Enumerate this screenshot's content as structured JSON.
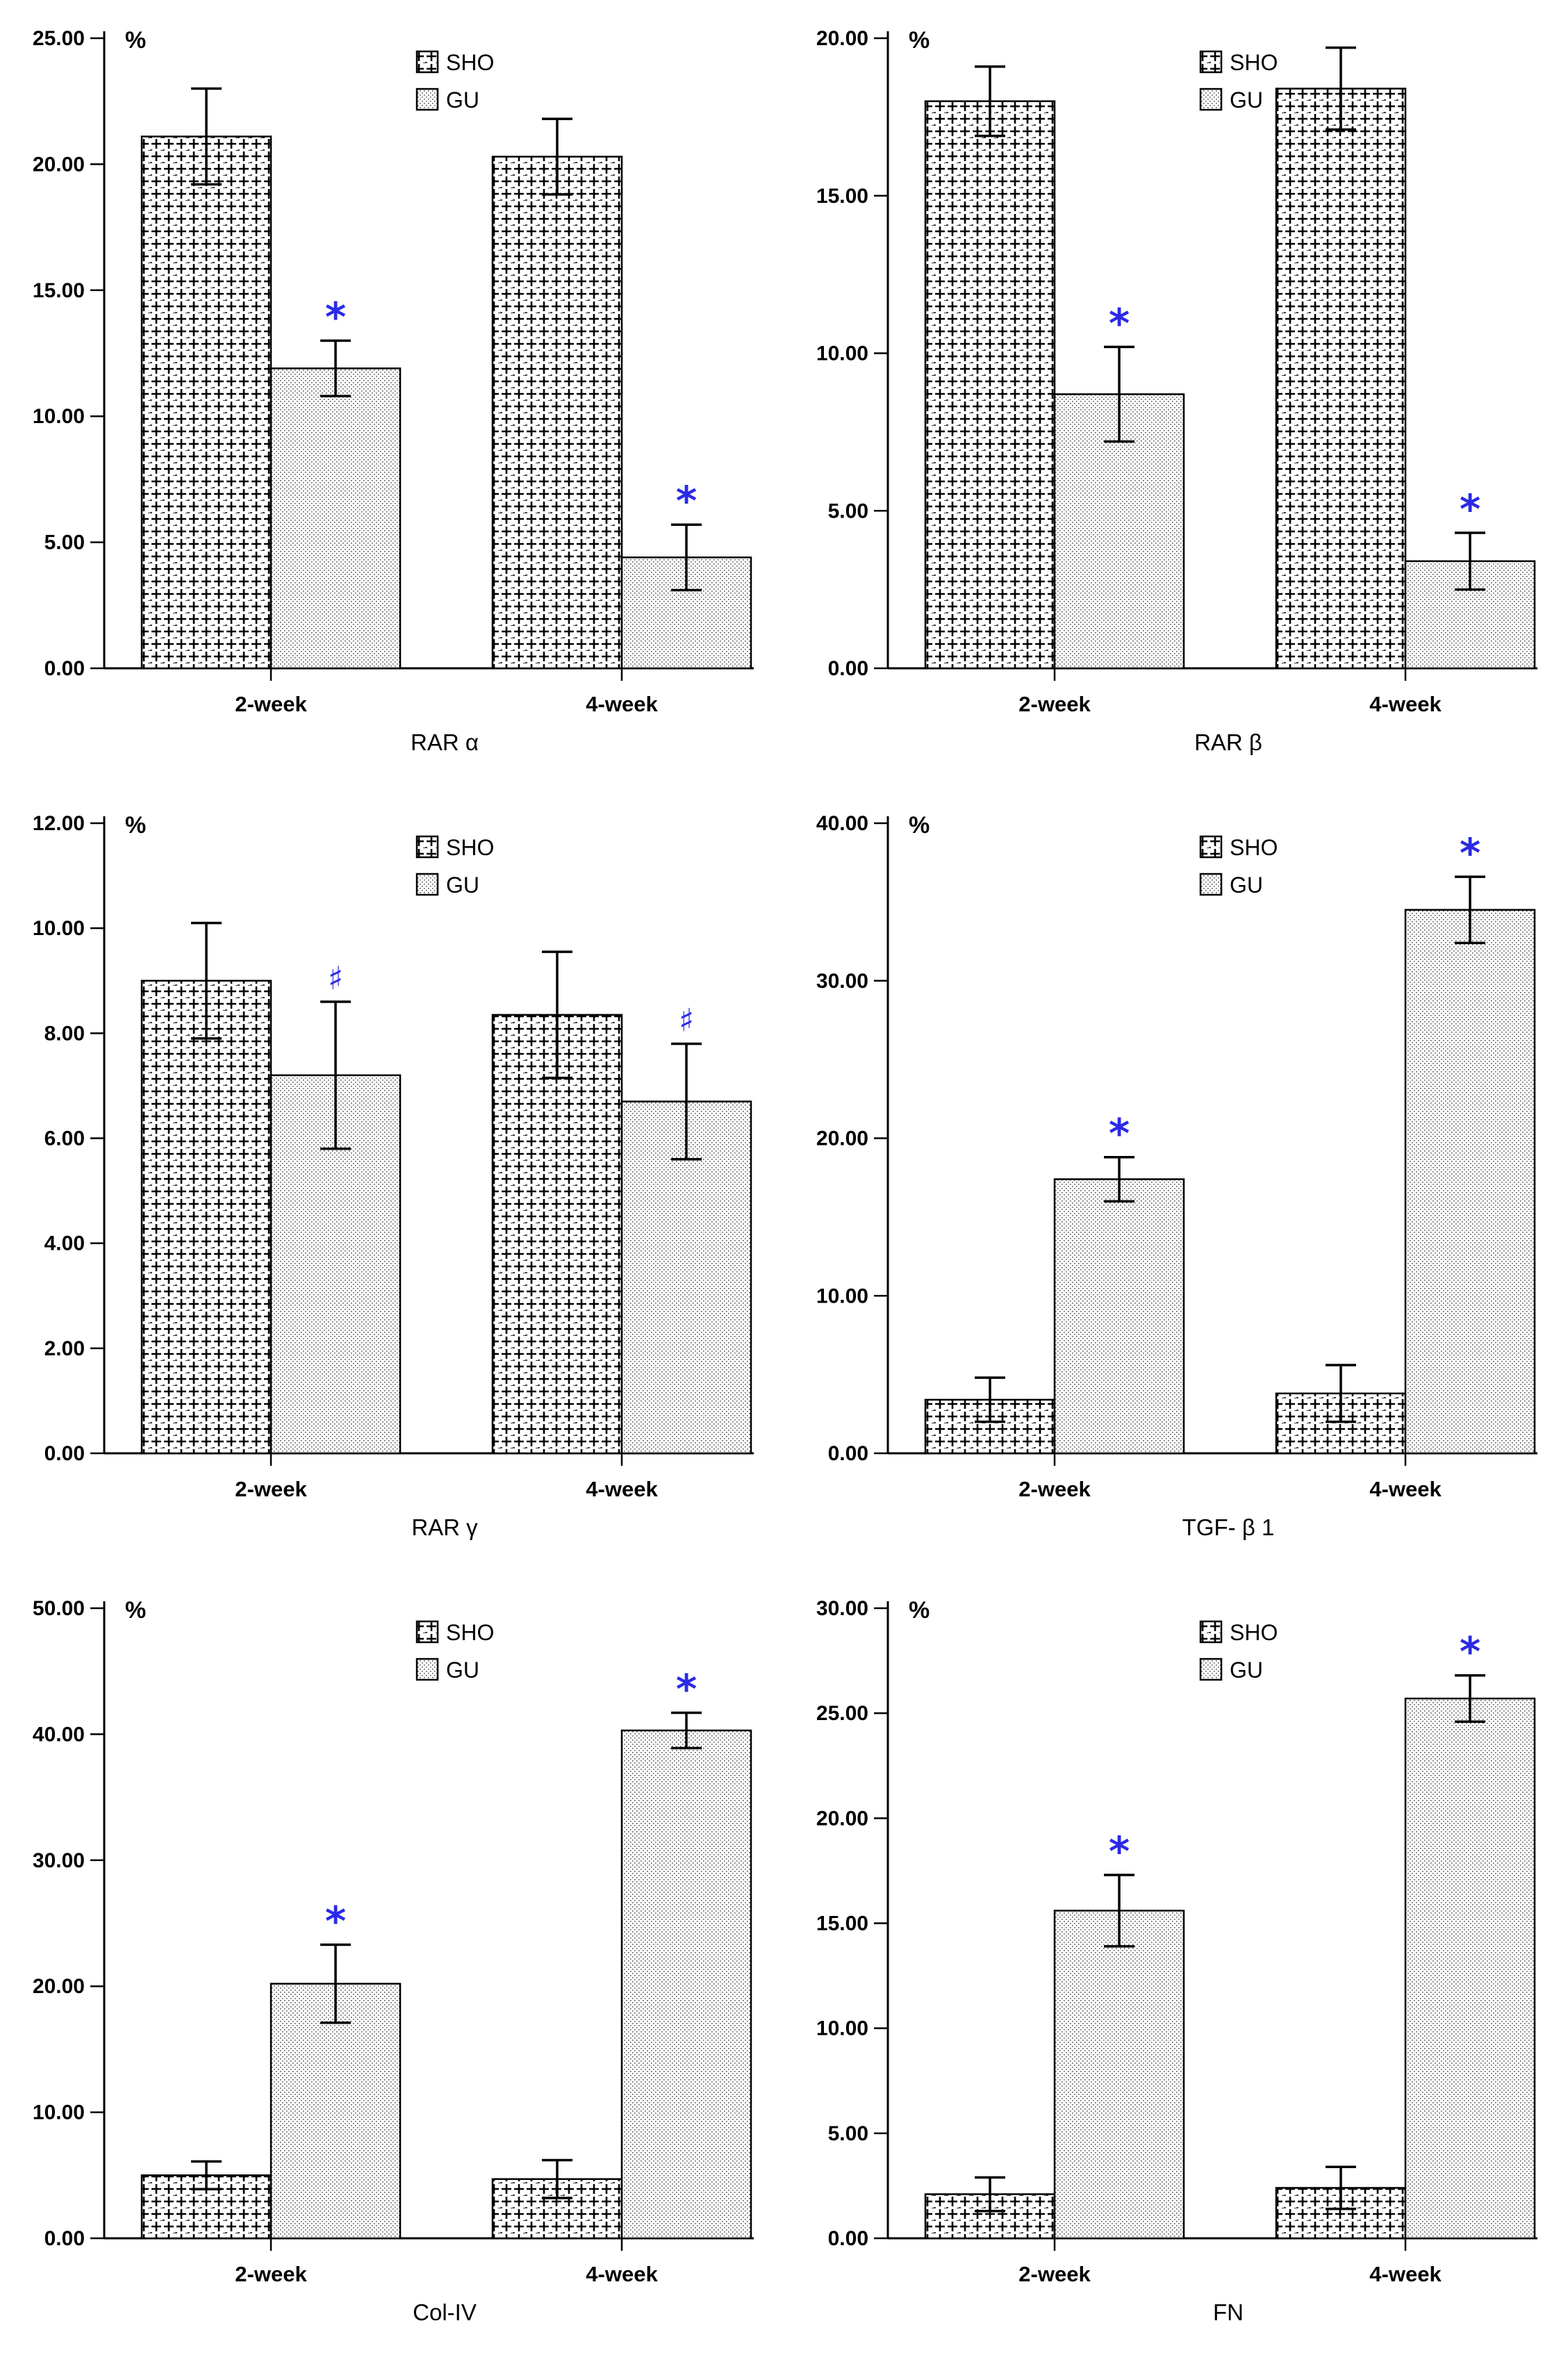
{
  "figure": {
    "colors": {
      "axis": "#000000",
      "bar_edge": "#000000",
      "significance": "#2a2ae6",
      "sho_fill": "#ffffff",
      "gu_fill": "#ffffff"
    }
  },
  "chart_data": [
    {
      "type": "bar",
      "title": "RAR α",
      "ylabel": "%",
      "categories": [
        "2-week",
        "4-week"
      ],
      "ylim": [
        0,
        25
      ],
      "yticks": [
        "0.00",
        "5.00",
        "10.00",
        "15.00",
        "20.00",
        "25.00"
      ],
      "legend": [
        "SHO",
        "GU"
      ],
      "legend_position": "top-center",
      "series": [
        {
          "name": "SHO",
          "values": [
            21.1,
            20.3
          ],
          "errors": [
            1.9,
            1.5
          ],
          "marks": [
            "",
            ""
          ]
        },
        {
          "name": "GU",
          "values": [
            11.9,
            4.4
          ],
          "errors": [
            1.1,
            1.3
          ],
          "marks": [
            "*",
            "*"
          ]
        }
      ]
    },
    {
      "type": "bar",
      "title": "RAR β",
      "ylabel": "%",
      "categories": [
        "2-week",
        "4-week"
      ],
      "ylim": [
        0,
        20
      ],
      "yticks": [
        "0.00",
        "5.00",
        "10.00",
        "15.00",
        "20.00"
      ],
      "legend": [
        "SHO",
        "GU"
      ],
      "legend_position": "top-center",
      "series": [
        {
          "name": "SHO",
          "values": [
            18.0,
            18.4
          ],
          "errors": [
            1.1,
            1.3
          ],
          "marks": [
            "",
            ""
          ]
        },
        {
          "name": "GU",
          "values": [
            8.7,
            3.4
          ],
          "errors": [
            1.5,
            0.9
          ],
          "marks": [
            "*",
            "*"
          ]
        }
      ]
    },
    {
      "type": "bar",
      "title": "RAR γ",
      "ylabel": "%",
      "categories": [
        "2-week",
        "4-week"
      ],
      "ylim": [
        0,
        12
      ],
      "yticks": [
        "0.00",
        "2.00",
        "4.00",
        "6.00",
        "8.00",
        "10.00",
        "12.00"
      ],
      "legend": [
        "SHO",
        "GU"
      ],
      "legend_position": "top-center",
      "series": [
        {
          "name": "SHO",
          "values": [
            9.0,
            8.35
          ],
          "errors": [
            1.1,
            1.2
          ],
          "marks": [
            "",
            ""
          ]
        },
        {
          "name": "GU",
          "values": [
            7.2,
            6.7
          ],
          "errors": [
            1.4,
            1.1
          ],
          "marks": [
            "♯",
            "♯"
          ]
        }
      ]
    },
    {
      "type": "bar",
      "title": "TGF- β 1",
      "ylabel": "%",
      "categories": [
        "2-week",
        "4-week"
      ],
      "ylim": [
        0,
        40
      ],
      "yticks": [
        "0.00",
        "10.00",
        "20.00",
        "30.00",
        "40.00"
      ],
      "legend": [
        "SHO",
        "GU"
      ],
      "legend_position": "top-center",
      "series": [
        {
          "name": "SHO",
          "values": [
            3.4,
            3.8
          ],
          "errors": [
            1.4,
            1.8
          ],
          "marks": [
            "",
            ""
          ]
        },
        {
          "name": "GU",
          "values": [
            17.4,
            34.5
          ],
          "errors": [
            1.4,
            2.1
          ],
          "marks": [
            "*",
            "*"
          ]
        }
      ]
    },
    {
      "type": "bar",
      "title": "Col-IV",
      "ylabel": "%",
      "categories": [
        "2-week",
        "4-week"
      ],
      "ylim": [
        0,
        50
      ],
      "yticks": [
        "0.00",
        "10.00",
        "20.00",
        "30.00",
        "40.00",
        "50.00"
      ],
      "legend": [
        "SHO",
        "GU"
      ],
      "legend_position": "top-center",
      "series": [
        {
          "name": "SHO",
          "values": [
            5.0,
            4.7
          ],
          "errors": [
            1.1,
            1.5
          ],
          "marks": [
            "",
            ""
          ]
        },
        {
          "name": "GU",
          "values": [
            20.2,
            40.3
          ],
          "errors": [
            3.1,
            1.4
          ],
          "marks": [
            "*",
            "*"
          ]
        }
      ]
    },
    {
      "type": "bar",
      "title": "FN",
      "ylabel": "%",
      "categories": [
        "2-week",
        "4-week"
      ],
      "ylim": [
        0,
        30
      ],
      "yticks": [
        "0.00",
        "5.00",
        "10.00",
        "15.00",
        "20.00",
        "25.00",
        "30.00"
      ],
      "legend": [
        "SHO",
        "GU"
      ],
      "legend_position": "top-center",
      "series": [
        {
          "name": "SHO",
          "values": [
            2.1,
            2.4
          ],
          "errors": [
            0.8,
            1.0
          ],
          "marks": [
            "",
            ""
          ]
        },
        {
          "name": "GU",
          "values": [
            15.6,
            25.7
          ],
          "errors": [
            1.7,
            1.1
          ],
          "marks": [
            "*",
            "*"
          ]
        }
      ]
    }
  ]
}
